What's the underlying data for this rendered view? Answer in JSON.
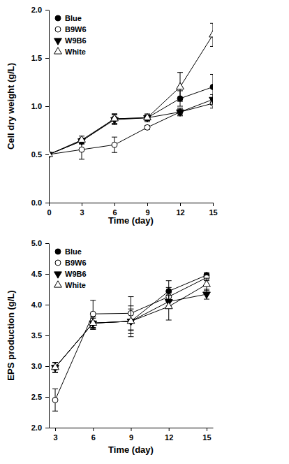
{
  "chart_data": [
    {
      "type": "line",
      "x_label": "Time (day)",
      "y_label": "Cell dry weight (g/L)",
      "xlim": [
        0,
        15
      ],
      "xticks": [
        0,
        3,
        6,
        9,
        12,
        15
      ],
      "ylim": [
        0,
        2
      ],
      "yticks": [
        {
          "value": 0,
          "label": "0.0"
        },
        0.5,
        {
          "value": 1,
          "label": "1.0"
        },
        1.5,
        {
          "value": 2,
          "label": "2.0"
        }
      ],
      "legend": "upper left",
      "grid": false,
      "x": [
        0,
        3,
        6,
        9,
        12,
        15
      ],
      "series": [
        {
          "name": "Blue",
          "color": "#000000",
          "marker": "circle",
          "values": [
            0.5,
            0.64,
            0.87,
            0.88,
            1.08,
            1.2
          ],
          "errors": [
            0.01,
            0.03,
            0.05,
            0.03,
            0.08,
            0.13
          ]
        },
        {
          "name": "B9W6",
          "color": "#000000",
          "marker": "circle-open",
          "values": [
            0.5,
            0.55,
            0.6,
            0.78,
            0.94,
            1.03
          ],
          "errors": [
            0.01,
            0.1,
            0.08,
            0.02,
            0.03,
            0.05
          ]
        },
        {
          "name": "W9B6",
          "color": "#000000",
          "marker": "triangle-down",
          "values": [
            0.5,
            0.64,
            0.86,
            0.88,
            0.94,
            1.07
          ],
          "errors": [
            0.01,
            0.03,
            0.05,
            0.03,
            0.04,
            0.05
          ]
        },
        {
          "name": "White",
          "color": "#000000",
          "marker": "triangle-up-open",
          "values": [
            0.5,
            0.65,
            0.87,
            0.88,
            1.2,
            1.74
          ],
          "errors": [
            0.01,
            0.04,
            0.05,
            0.04,
            0.15,
            0.12
          ]
        }
      ]
    },
    {
      "type": "line",
      "x_label": "Time (day)",
      "y_label": "EPS production (g/L)",
      "xlim": [
        2.5,
        15.5
      ],
      "xticks": [
        3,
        6,
        9,
        12,
        15
      ],
      "ylim": [
        2,
        5
      ],
      "yticks": [
        {
          "value": 2,
          "label": "2.0"
        },
        2.5,
        {
          "value": 3,
          "label": "3.0"
        },
        3.5,
        {
          "value": 4,
          "label": "4.0"
        },
        4.5,
        {
          "value": 5,
          "label": "5.0"
        }
      ],
      "legend": "upper left",
      "grid": false,
      "x": [
        3,
        6,
        9,
        12,
        15
      ],
      "series": [
        {
          "name": "Blue",
          "color": "#000000",
          "marker": "circle",
          "values": [
            2.98,
            3.7,
            3.73,
            4.22,
            4.48
          ],
          "errors": [
            0.08,
            0.1,
            0.15,
            0.17,
            0.04
          ]
        },
        {
          "name": "B9W6",
          "color": "#000000",
          "marker": "circle-open",
          "values": [
            2.45,
            3.85,
            3.86,
            4.13,
            4.44
          ],
          "errors": [
            0.18,
            0.22,
            0.27,
            0.15,
            0.05
          ]
        },
        {
          "name": "W9B6",
          "color": "#000000",
          "marker": "triangle-down",
          "values": [
            2.98,
            3.7,
            3.73,
            4.05,
            4.17
          ],
          "errors": [
            0.08,
            0.1,
            0.2,
            0.1,
            0.08
          ]
        },
        {
          "name": "White",
          "color": "#000000",
          "marker": "triangle-up-open",
          "values": [
            2.98,
            3.7,
            3.73,
            3.97,
            4.33
          ],
          "errors": [
            0.08,
            0.08,
            0.25,
            0.22,
            0.1
          ]
        }
      ]
    }
  ]
}
